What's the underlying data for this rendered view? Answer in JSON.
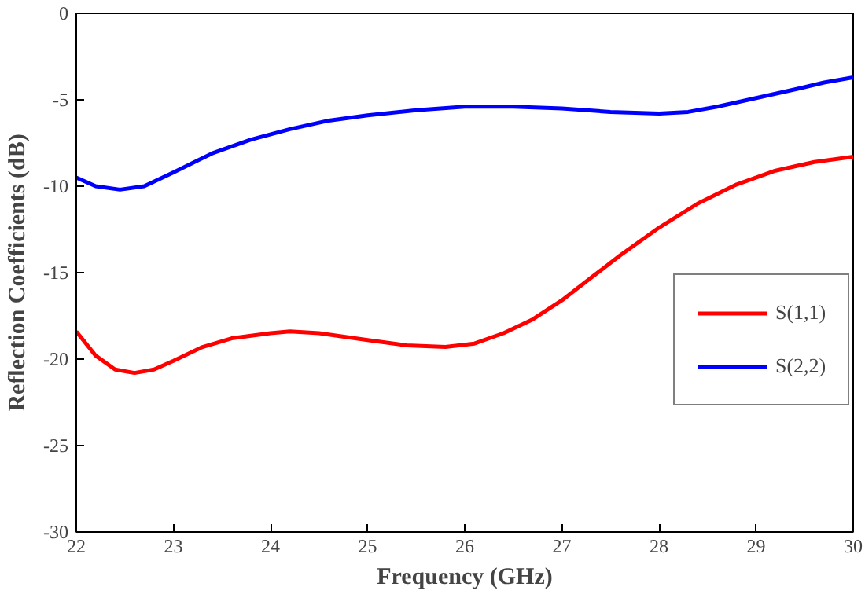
{
  "chart_data": {
    "type": "line",
    "xlabel": "Frequency (GHz)",
    "ylabel": "Reflection Coefficients (dB)",
    "xlim": [
      22,
      30
    ],
    "ylim": [
      -30,
      0
    ],
    "xticks": [
      22,
      23,
      24,
      25,
      26,
      27,
      28,
      29,
      30
    ],
    "yticks": [
      -30,
      -25,
      -20,
      -15,
      -10,
      -5,
      0
    ],
    "grid": false,
    "legend": "right",
    "marker": "none",
    "line_style": "solid",
    "series": [
      {
        "name": "S(1,1)",
        "color": "#ff0000",
        "x": [
          22,
          22.2,
          22.4,
          22.6,
          22.8,
          23,
          23.3,
          23.6,
          24,
          24.2,
          24.5,
          25,
          25.4,
          25.8,
          26.1,
          26.4,
          26.7,
          27,
          27.3,
          27.6,
          28,
          28.4,
          28.8,
          29.2,
          29.6,
          30
        ],
        "values": [
          -18.4,
          -19.8,
          -20.6,
          -20.8,
          -20.6,
          -20.1,
          -19.3,
          -18.8,
          -18.5,
          -18.4,
          -18.5,
          -18.9,
          -19.2,
          -19.3,
          -19.1,
          -18.5,
          -17.7,
          -16.6,
          -15.3,
          -14,
          -12.4,
          -11,
          -9.9,
          -9.1,
          -8.6,
          -8.3
        ]
      },
      {
        "name": "S(2,2)",
        "color": "#0000ff",
        "x": [
          22,
          22.2,
          22.45,
          22.7,
          23,
          23.4,
          23.8,
          24.2,
          24.6,
          25,
          25.5,
          26,
          26.5,
          27,
          27.5,
          28,
          28.3,
          28.6,
          29,
          29.4,
          29.7,
          30
        ],
        "values": [
          -9.5,
          -10,
          -10.2,
          -10,
          -9.2,
          -8.1,
          -7.3,
          -6.7,
          -6.2,
          -5.9,
          -5.6,
          -5.4,
          -5.4,
          -5.5,
          -5.7,
          -5.8,
          -5.7,
          -5.4,
          -4.9,
          -4.4,
          -4.0,
          -3.7
        ]
      }
    ]
  }
}
